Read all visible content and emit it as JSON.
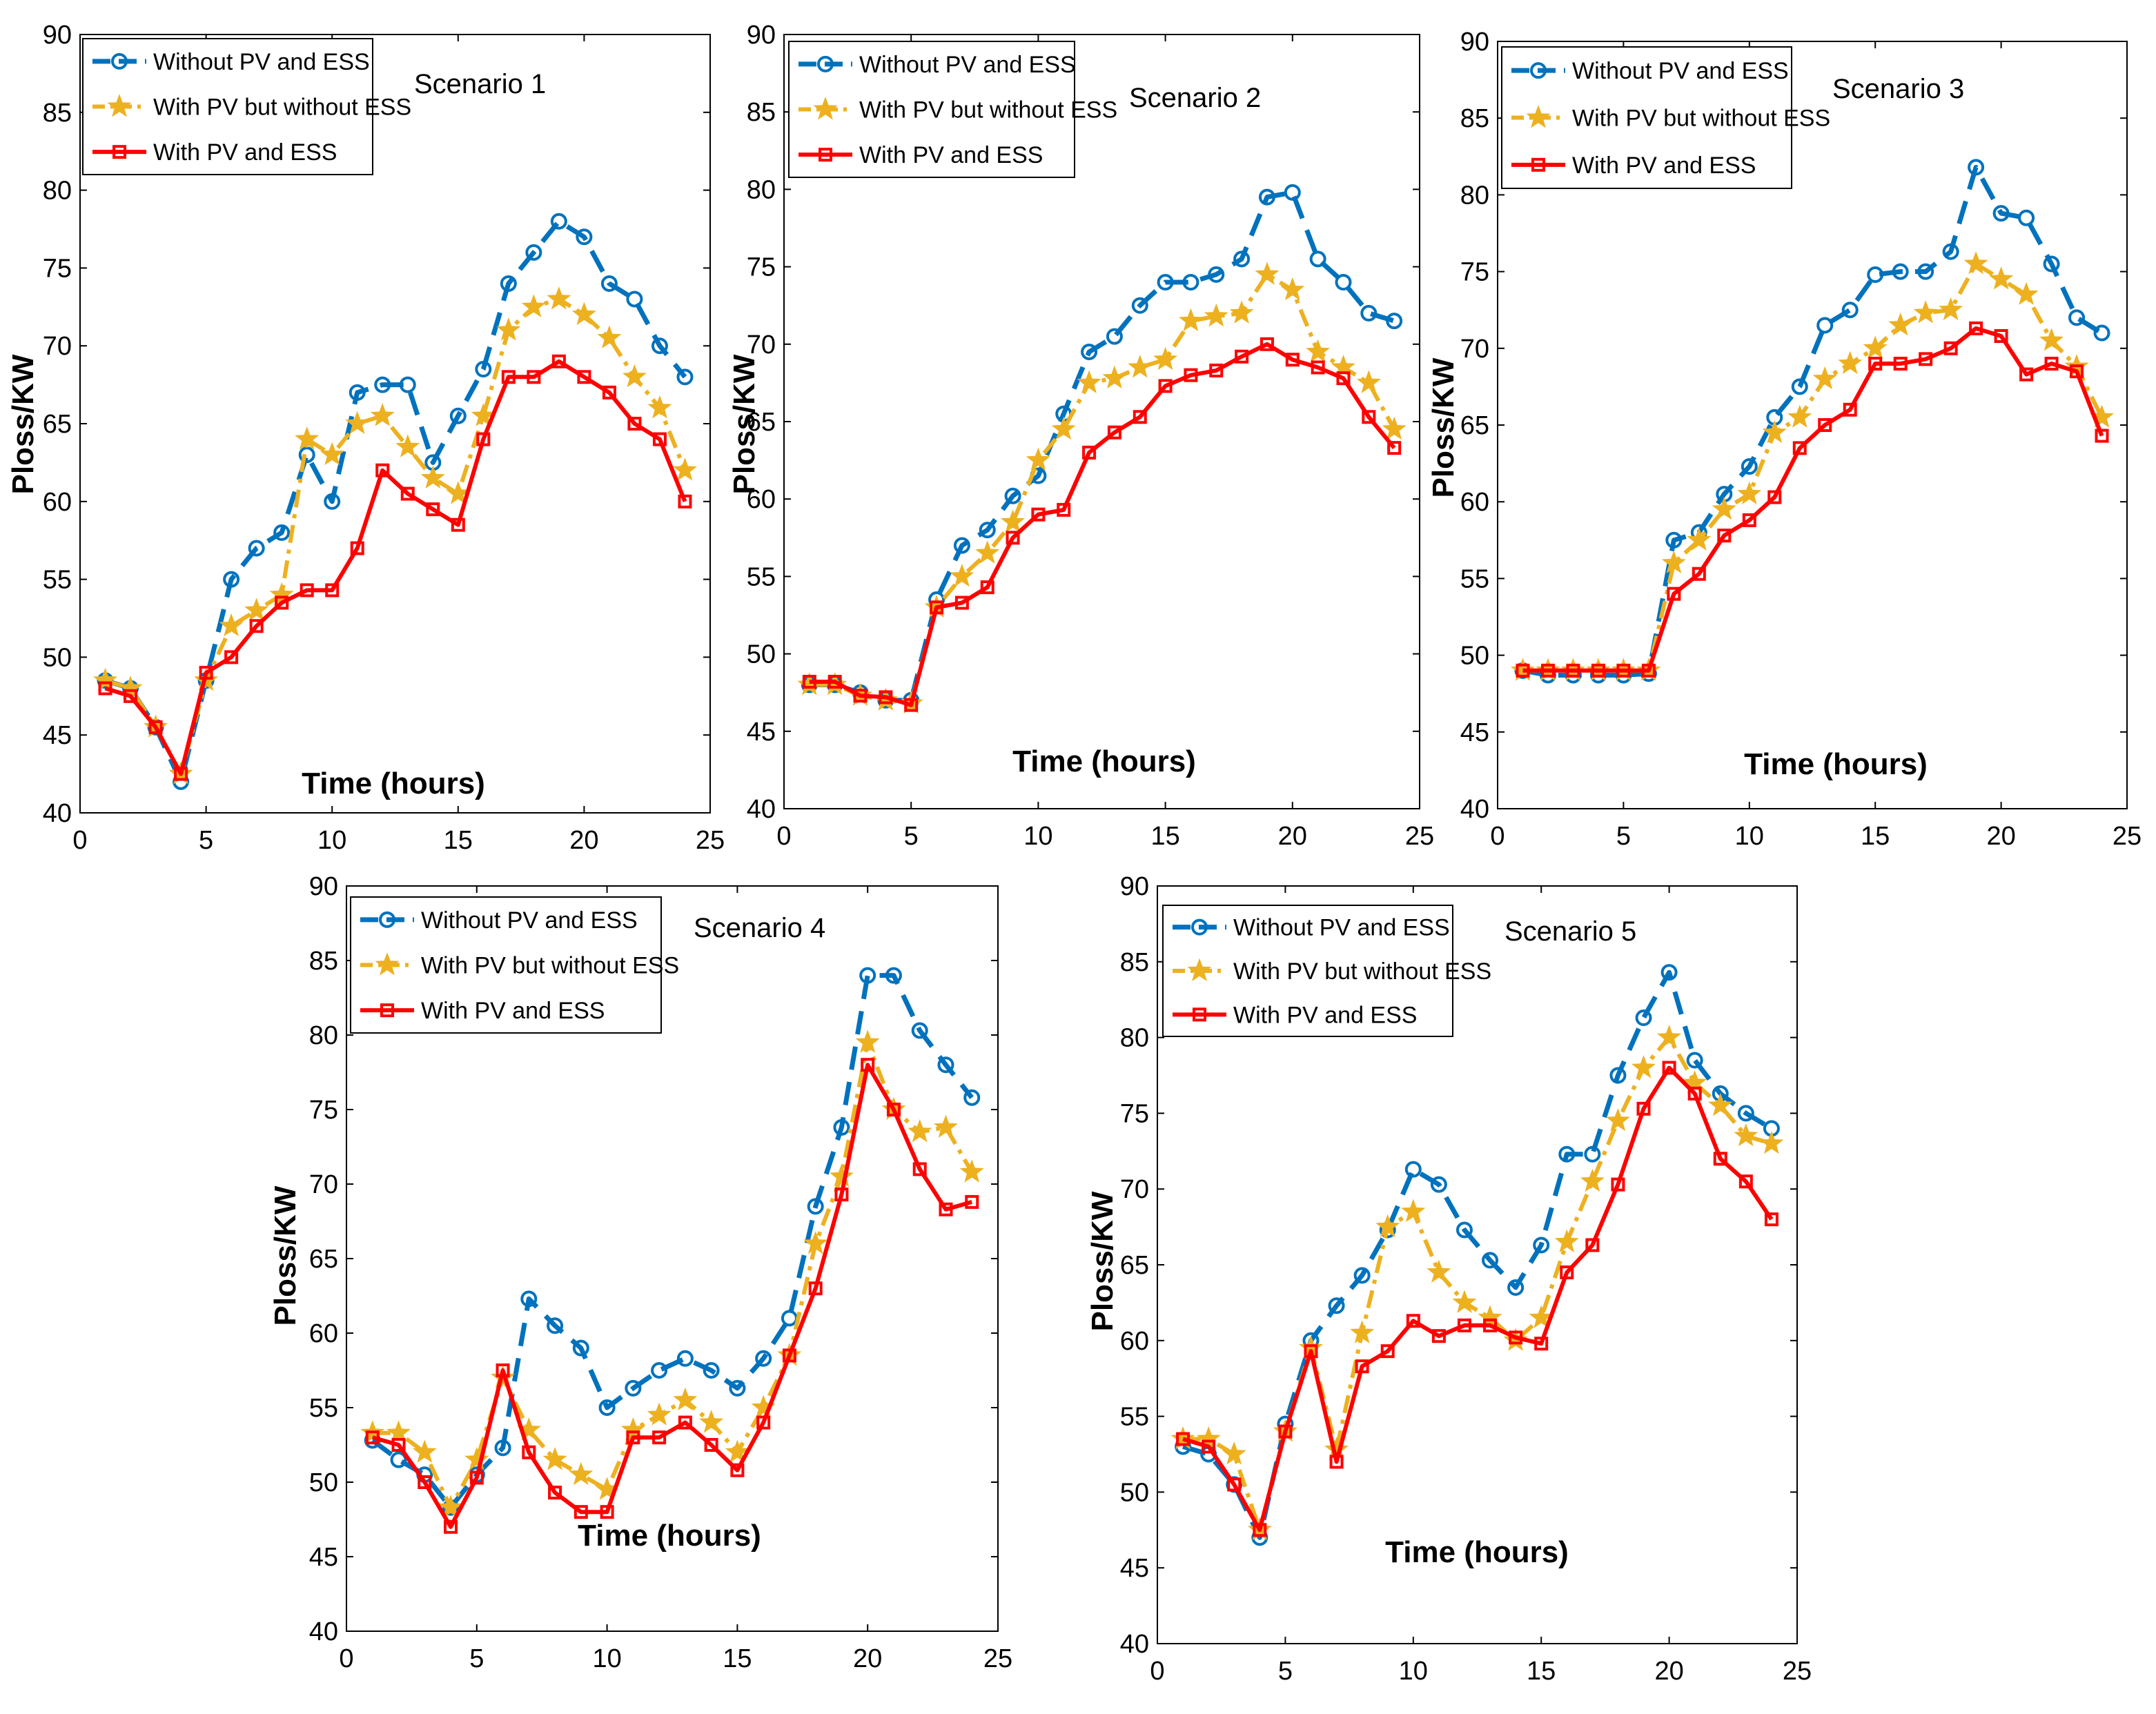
{
  "chart_data": [
    {
      "type": "line",
      "title": "Scenario 1",
      "xlabel": "Time (hours)",
      "ylabel": "Ploss/KW",
      "xlim": [
        0,
        25
      ],
      "ylim": [
        40,
        90
      ],
      "xticks": [
        0,
        5,
        10,
        15,
        20,
        25
      ],
      "yticks": [
        40,
        45,
        50,
        55,
        60,
        65,
        70,
        75,
        80,
        85,
        90
      ],
      "legend": "top-left",
      "x": [
        1,
        2,
        3,
        4,
        5,
        6,
        7,
        8,
        9,
        10,
        11,
        12,
        13,
        14,
        15,
        16,
        17,
        18,
        19,
        20,
        21,
        22,
        23,
        24
      ],
      "series": [
        {
          "name": "Without PV and ESS",
          "color": "#0072BD",
          "values": [
            48.5,
            48,
            45.5,
            42,
            48.5,
            55,
            57,
            58,
            63,
            60,
            67,
            67.5,
            67.5,
            62.5,
            65.5,
            68.5,
            74,
            76,
            78,
            77,
            74,
            73,
            70,
            68
          ]
        },
        {
          "name": "With PV but without ESS",
          "color": "#EDB120",
          "values": [
            48.5,
            48,
            45.5,
            42.5,
            48.5,
            52,
            53,
            54,
            64,
            63,
            65,
            65.5,
            63.5,
            61.5,
            60.5,
            65.5,
            71,
            72.5,
            73,
            72,
            70.5,
            68,
            66,
            62
          ]
        },
        {
          "name": "With PV and ESS",
          "color": "#FF0000",
          "values": [
            48,
            47.5,
            45.5,
            42.5,
            49,
            50,
            52,
            53.5,
            54.3,
            54.3,
            57,
            62,
            60.5,
            59.5,
            58.5,
            64,
            68,
            68,
            69,
            68,
            67,
            65,
            64,
            60
          ]
        }
      ]
    },
    {
      "type": "line",
      "title": "Scenario 2",
      "xlabel": "Time (hours)",
      "ylabel": "Ploss/KW",
      "xlim": [
        0,
        25
      ],
      "ylim": [
        40,
        90
      ],
      "xticks": [
        0,
        5,
        10,
        15,
        20,
        25
      ],
      "yticks": [
        40,
        45,
        50,
        55,
        60,
        65,
        70,
        75,
        80,
        85,
        90
      ],
      "legend": "top-left",
      "x": [
        1,
        2,
        3,
        4,
        5,
        6,
        7,
        8,
        9,
        10,
        11,
        12,
        13,
        14,
        15,
        16,
        17,
        18,
        19,
        20,
        21,
        22,
        23,
        24
      ],
      "series": [
        {
          "name": "Without PV and ESS",
          "color": "#0072BD",
          "values": [
            48,
            48,
            47.5,
            47,
            47,
            53.5,
            57,
            58,
            60.2,
            61.5,
            65.5,
            69.5,
            70.5,
            72.5,
            74,
            74,
            74.5,
            75.5,
            79.5,
            79.8,
            75.5,
            74,
            72,
            71.5
          ]
        },
        {
          "name": "With PV but without ESS",
          "color": "#EDB120",
          "values": [
            48,
            48,
            47.3,
            47,
            46.8,
            53,
            55,
            56.5,
            58.5,
            62.5,
            64.5,
            67.5,
            67.8,
            68.5,
            69,
            71.5,
            71.8,
            72,
            74.5,
            73.5,
            69.5,
            68.5,
            67.5,
            64.5
          ]
        },
        {
          "name": "With PV and ESS",
          "color": "#FF0000",
          "values": [
            48.2,
            48.2,
            47.3,
            47.2,
            46.7,
            53,
            53.3,
            54.3,
            57.5,
            59,
            59.3,
            63,
            64.3,
            65.3,
            67.3,
            68,
            68.3,
            69.2,
            70,
            69,
            68.5,
            67.8,
            65.3,
            63.3
          ]
        }
      ]
    },
    {
      "type": "line",
      "title": "Scenario 3",
      "xlabel": "Time (hours)",
      "ylabel": "Ploss/KW",
      "xlim": [
        0,
        25
      ],
      "ylim": [
        40,
        90
      ],
      "xticks": [
        0,
        5,
        10,
        15,
        20,
        25
      ],
      "yticks": [
        40,
        45,
        50,
        55,
        60,
        65,
        70,
        75,
        80,
        85,
        90
      ],
      "legend": "top-left",
      "x": [
        1,
        2,
        3,
        4,
        5,
        6,
        7,
        8,
        9,
        10,
        11,
        12,
        13,
        14,
        15,
        16,
        17,
        18,
        19,
        20,
        21,
        22,
        23,
        24
      ],
      "series": [
        {
          "name": "Without PV and ESS",
          "color": "#0072BD",
          "values": [
            49,
            48.7,
            48.7,
            48.7,
            48.7,
            48.8,
            57.5,
            58,
            60.5,
            62.3,
            65.5,
            67.5,
            71.5,
            72.5,
            74.8,
            75,
            75,
            76.3,
            81.8,
            78.8,
            78.5,
            75.5,
            72,
            71
          ]
        },
        {
          "name": "With PV but without ESS",
          "color": "#EDB120",
          "values": [
            49,
            49,
            49,
            49,
            49,
            49,
            56,
            57.5,
            59.5,
            60.5,
            64.5,
            65.5,
            68,
            69,
            70,
            71.5,
            72.3,
            72.5,
            75.5,
            74.5,
            73.5,
            70.5,
            68.8,
            65.5
          ]
        },
        {
          "name": "With PV and ESS",
          "color": "#FF0000",
          "values": [
            49,
            49,
            49,
            49,
            49,
            49,
            54,
            55.3,
            57.8,
            58.8,
            60.3,
            63.5,
            65,
            66,
            69,
            69,
            69.3,
            70,
            71.3,
            70.8,
            68.3,
            69,
            68.5,
            64.3
          ]
        }
      ]
    },
    {
      "type": "line",
      "title": "Scenario 4",
      "xlabel": "Time (hours)",
      "ylabel": "Ploss/KW",
      "xlim": [
        0,
        25
      ],
      "ylim": [
        40,
        90
      ],
      "xticks": [
        0,
        5,
        10,
        15,
        20,
        25
      ],
      "yticks": [
        40,
        45,
        50,
        55,
        60,
        65,
        70,
        75,
        80,
        85,
        90
      ],
      "legend": "top-left",
      "x": [
        1,
        2,
        3,
        4,
        5,
        6,
        7,
        8,
        9,
        10,
        11,
        12,
        13,
        14,
        15,
        16,
        17,
        18,
        19,
        20,
        21,
        22,
        23,
        24
      ],
      "series": [
        {
          "name": "Without PV and ESS",
          "color": "#0072BD",
          "values": [
            52.8,
            51.5,
            50.5,
            48.3,
            50.5,
            52.3,
            62.3,
            60.5,
            59,
            55,
            56.3,
            57.5,
            58.3,
            57.5,
            56.3,
            58.3,
            61,
            68.5,
            73.8,
            84,
            84,
            80.3,
            78,
            75.8
          ]
        },
        {
          "name": "With PV but without ESS",
          "color": "#EDB120",
          "values": [
            53.3,
            53.3,
            52,
            48.3,
            51.5,
            57,
            53.5,
            51.5,
            50.5,
            49.5,
            53.5,
            54.5,
            55.5,
            54,
            52,
            55,
            58.5,
            66,
            70.5,
            79.5,
            75,
            73.5,
            73.8,
            70.8
          ]
        },
        {
          "name": "With PV and ESS",
          "color": "#FF0000",
          "values": [
            53,
            52.5,
            50,
            47,
            50.3,
            57.5,
            52,
            49.3,
            48,
            48,
            53,
            53,
            54,
            52.5,
            50.8,
            54,
            58.5,
            63,
            69.3,
            78,
            75,
            71,
            68.3,
            68.8
          ]
        }
      ]
    },
    {
      "type": "line",
      "title": "Scenario 5",
      "xlabel": "Time (hours)",
      "ylabel": "Ploss/KW",
      "xlim": [
        0,
        25
      ],
      "ylim": [
        40,
        90
      ],
      "xticks": [
        0,
        5,
        10,
        15,
        20,
        25
      ],
      "yticks": [
        40,
        45,
        50,
        55,
        60,
        65,
        70,
        75,
        80,
        85,
        90
      ],
      "legend": "top-left",
      "x": [
        1,
        2,
        3,
        4,
        5,
        6,
        7,
        8,
        9,
        10,
        11,
        12,
        13,
        14,
        15,
        16,
        17,
        18,
        19,
        20,
        21,
        22,
        23,
        24
      ],
      "series": [
        {
          "name": "Without PV and ESS",
          "color": "#0072BD",
          "values": [
            53,
            52.5,
            50.5,
            47,
            54.5,
            60,
            62.3,
            64.3,
            67.3,
            71.3,
            70.3,
            67.3,
            65.3,
            63.5,
            66.3,
            72.3,
            72.3,
            77.5,
            81.3,
            84.3,
            78.5,
            76.3,
            75,
            74
          ]
        },
        {
          "name": "With PV but without ESS",
          "color": "#EDB120",
          "values": [
            53.5,
            53.5,
            52.5,
            47.5,
            54,
            59.5,
            52.8,
            60.5,
            67.5,
            68.5,
            64.5,
            62.5,
            61.5,
            60,
            61.5,
            66.5,
            70.5,
            74.5,
            78,
            80,
            77,
            75.5,
            73.5,
            73
          ]
        },
        {
          "name": "With PV and ESS",
          "color": "#FF0000",
          "values": [
            53.5,
            53,
            50.5,
            47.5,
            54,
            59.3,
            52,
            58.3,
            59.3,
            61.3,
            60.3,
            61,
            61,
            60.2,
            59.8,
            64.5,
            66.3,
            70.3,
            75.3,
            78,
            76.3,
            72,
            70.5,
            68
          ]
        }
      ]
    }
  ]
}
